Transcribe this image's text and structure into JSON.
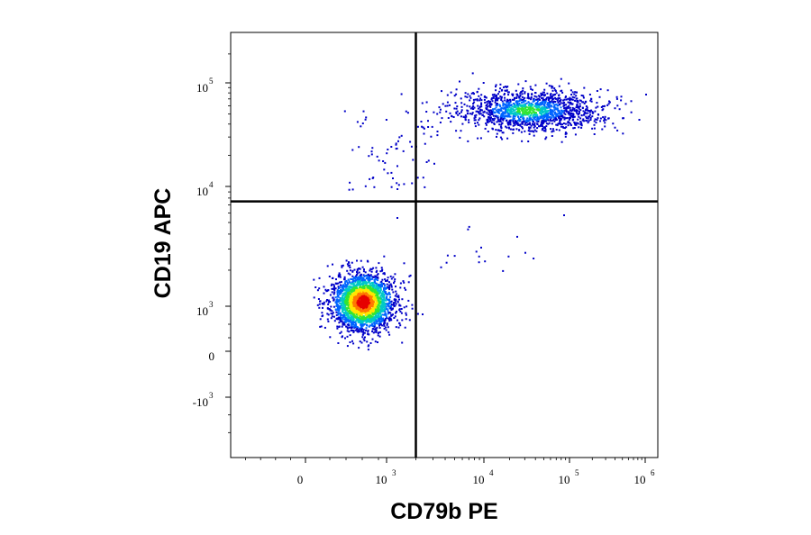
{
  "chart_data": {
    "type": "scatter",
    "title": "",
    "xlabel": "CD79b PE",
    "ylabel": "CD19 APC",
    "x_scale": "biexponential",
    "y_scale": "biexponential",
    "x_tick_labels": [
      {
        "base": "0",
        "exp": "",
        "value": 0
      },
      {
        "base": "10",
        "exp": "3",
        "value": 1000
      },
      {
        "base": "10",
        "exp": "4",
        "value": 10000
      },
      {
        "base": "10",
        "exp": "5",
        "value": 100000
      },
      {
        "base": "10",
        "exp": "6",
        "value": 1000000
      }
    ],
    "y_tick_labels": [
      {
        "base": "-10",
        "exp": "3",
        "value": -1000
      },
      {
        "base": "0",
        "exp": "",
        "value": 0
      },
      {
        "base": "10",
        "exp": "3",
        "value": 1000
      },
      {
        "base": "10",
        "exp": "4",
        "value": 10000
      },
      {
        "base": "10",
        "exp": "5",
        "value": 100000
      }
    ],
    "quadrant_gates": {
      "x": 2000,
      "y": 7500
    },
    "populations": [
      {
        "center_x": 700,
        "center_y": 1100,
        "density": "high",
        "quadrant": "lower-left"
      },
      {
        "center_x": 25000,
        "center_y": 55000,
        "density": "medium",
        "quadrant": "upper-right"
      }
    ],
    "color_scale": [
      "#0000c8",
      "#0064ff",
      "#00c8c8",
      "#32e632",
      "#ffe600",
      "#ff7800",
      "#e60000"
    ],
    "grid": false
  }
}
